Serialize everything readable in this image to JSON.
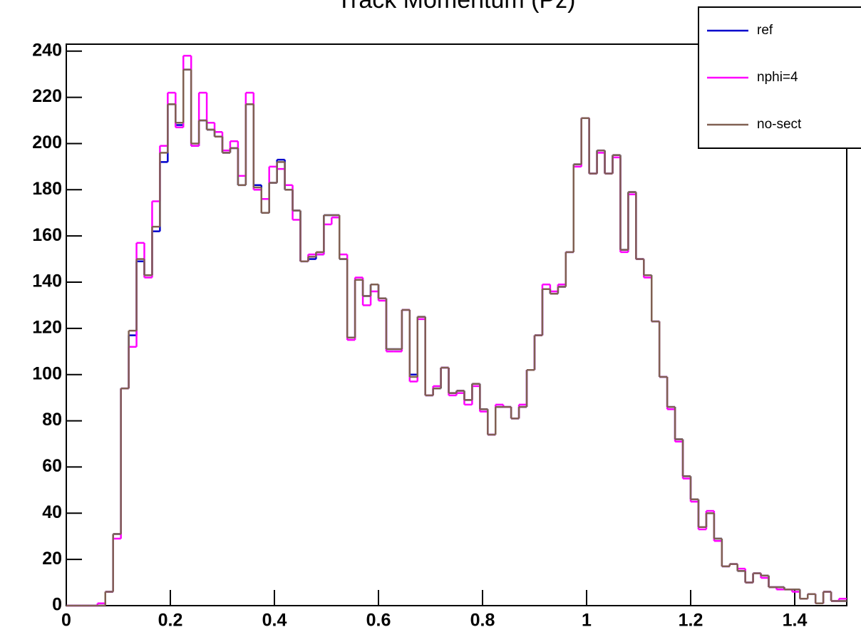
{
  "chart_data": {
    "type": "histogram",
    "title": "Track Momentum (Pz)",
    "bins": [
      0,
      0.015,
      0.03,
      0.045,
      0.06,
      0.075,
      0.09,
      0.105,
      0.12,
      0.135,
      0.15,
      0.165,
      0.18,
      0.195,
      0.21,
      0.225,
      0.24,
      0.255,
      0.27,
      0.285,
      0.3,
      0.315,
      0.33,
      0.345,
      0.36,
      0.375,
      0.39,
      0.405,
      0.42,
      0.435,
      0.45,
      0.465,
      0.48,
      0.495,
      0.51,
      0.525,
      0.54,
      0.555,
      0.57,
      0.585,
      0.6,
      0.615,
      0.63,
      0.645,
      0.66,
      0.675,
      0.69,
      0.705,
      0.72,
      0.735,
      0.75,
      0.765,
      0.78,
      0.795,
      0.81,
      0.825,
      0.84,
      0.855,
      0.87,
      0.885,
      0.9,
      0.915,
      0.93,
      0.945,
      0.96,
      0.975,
      0.99,
      1.005,
      1.02,
      1.035,
      1.05,
      1.065,
      1.08,
      1.095,
      1.11,
      1.125,
      1.14,
      1.155,
      1.17,
      1.185,
      1.2,
      1.215,
      1.23,
      1.245,
      1.26,
      1.275,
      1.29,
      1.305,
      1.32,
      1.335,
      1.35,
      1.365,
      1.38,
      1.395,
      1.41,
      1.425,
      1.44,
      1.455,
      1.47,
      1.485,
      1.5
    ],
    "series": [
      {
        "name": "ref",
        "color": "#0000cc",
        "values": [
          0,
          0,
          0,
          0,
          0,
          6,
          31,
          94,
          117,
          149,
          143,
          162,
          192,
          217,
          208,
          232,
          199,
          210,
          206,
          203,
          196,
          198,
          182,
          217,
          182,
          170,
          183,
          193,
          180,
          171,
          149,
          150,
          152,
          169,
          169,
          150,
          116,
          141,
          134,
          139,
          133,
          111,
          111,
          128,
          100,
          125,
          91,
          94,
          103,
          92,
          93,
          89,
          96,
          85,
          74,
          86,
          86,
          81,
          86,
          102,
          117,
          137,
          135,
          138,
          153,
          191,
          211,
          187,
          197,
          187,
          195,
          154,
          179,
          150,
          143,
          123,
          99,
          86,
          72,
          56,
          46,
          34,
          40,
          29,
          17,
          18,
          15,
          10,
          14,
          13,
          8,
          8,
          7,
          7,
          3,
          5,
          1,
          6,
          2,
          2
        ]
      },
      {
        "name": "nphi=4",
        "color": "#ff00ff",
        "values": [
          0,
          0,
          0,
          0,
          1,
          6,
          29,
          94,
          112,
          157,
          142,
          175,
          199,
          222,
          207,
          238,
          199,
          222,
          209,
          205,
          197,
          201,
          186,
          222,
          180,
          176,
          190,
          189,
          182,
          167,
          149,
          152,
          152,
          165,
          168,
          152,
          115,
          142,
          130,
          136,
          132,
          110,
          110,
          128,
          97,
          124,
          91,
          95,
          103,
          91,
          92,
          87,
          95,
          84,
          74,
          87,
          86,
          81,
          87,
          102,
          117,
          139,
          136,
          139,
          153,
          190,
          211,
          187,
          196,
          187,
          194,
          153,
          178,
          150,
          142,
          123,
          99,
          85,
          71,
          55,
          45,
          33,
          41,
          28,
          17,
          18,
          16,
          10,
          14,
          12,
          8,
          7,
          7,
          6,
          3,
          5,
          1,
          6,
          2,
          3
        ]
      },
      {
        "name": "no-sect",
        "color": "#806052",
        "values": [
          0,
          0,
          0,
          0,
          0,
          6,
          31,
          94,
          119,
          150,
          143,
          164,
          196,
          217,
          209,
          232,
          200,
          210,
          206,
          203,
          196,
          198,
          182,
          217,
          181,
          170,
          183,
          192,
          180,
          171,
          149,
          151,
          153,
          169,
          169,
          150,
          116,
          141,
          134,
          139,
          133,
          111,
          111,
          128,
          99,
          125,
          91,
          94,
          103,
          92,
          93,
          89,
          96,
          85,
          74,
          86,
          86,
          81,
          86,
          102,
          117,
          137,
          135,
          138,
          153,
          191,
          211,
          187,
          197,
          187,
          195,
          154,
          179,
          150,
          143,
          123,
          99,
          86,
          72,
          56,
          46,
          34,
          40,
          29,
          17,
          18,
          15,
          10,
          14,
          13,
          8,
          8,
          7,
          7,
          3,
          5,
          1,
          6,
          2,
          2
        ]
      }
    ],
    "xlim": [
      0,
      1.5
    ],
    "xticks": [
      0,
      0.2,
      0.4,
      0.6,
      0.8,
      1,
      1.2,
      1.4
    ],
    "ylim": [
      0,
      243
    ],
    "yticks": [
      0,
      20,
      40,
      60,
      80,
      100,
      120,
      140,
      160,
      180,
      200,
      220,
      240
    ],
    "legend": "top-right"
  }
}
